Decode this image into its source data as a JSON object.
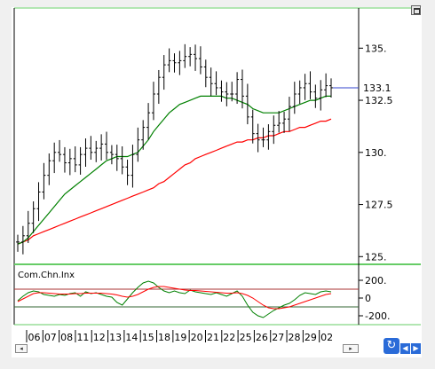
{
  "chart_data": [
    {
      "type": "line",
      "subtype": "ohlc-bars",
      "title": "",
      "xlabel": "",
      "ylabel": "",
      "ylim": [
        124.8,
        136.8
      ],
      "y_ticks": [
        "135.",
        "132.5",
        "130.",
        "127.5",
        "125."
      ],
      "y_tick_values": [
        135,
        132.5,
        130,
        127.5,
        125
      ],
      "last_value_label": "133.1",
      "last_value": 133.1,
      "x_tick_labels": [
        "06",
        "07",
        "08",
        "11",
        "12",
        "13",
        "14",
        "15",
        "18",
        "19",
        "20",
        "21",
        "22",
        "25",
        "26",
        "27",
        "28",
        "29",
        "02"
      ],
      "series": [
        {
          "values": [
            125.7,
            126.0,
            126.6,
            127.3,
            128.1,
            128.9,
            129.6,
            130.0,
            129.9,
            129.5,
            129.7,
            129.4,
            129.9,
            130.2,
            130.0,
            130.2,
            130.4,
            130.0,
            129.9,
            129.7,
            129.3,
            128.9,
            129.9,
            130.6,
            131.2,
            131.9,
            132.8,
            133.6,
            134.2,
            134.4,
            134.3,
            134.4,
            134.6,
            134.7,
            134.5,
            134.1,
            133.6,
            133.3,
            133.1,
            132.9,
            132.8,
            132.8,
            133.5,
            132.7,
            131.7,
            130.9,
            130.6,
            130.6,
            131.0,
            131.3,
            131.4,
            131.6,
            132.2,
            132.8,
            133.1,
            133.3,
            132.9,
            132.6,
            133.0,
            133.2,
            133.1
          ]
        },
        {
          "color": "#008000",
          "values": [
            125.6,
            125.7,
            125.9,
            126.2,
            126.5,
            126.8,
            127.1,
            127.4,
            127.7,
            128.0,
            128.2,
            128.4,
            128.6,
            128.8,
            129.0,
            129.2,
            129.4,
            129.6,
            129.7,
            129.8,
            129.8,
            129.8,
            129.9,
            130.0,
            130.3,
            130.6,
            131.0,
            131.3,
            131.6,
            131.9,
            132.1,
            132.3,
            132.4,
            132.5,
            132.6,
            132.7,
            132.7,
            132.7,
            132.7,
            132.7,
            132.6,
            132.6,
            132.5,
            132.4,
            132.3,
            132.1,
            132.0,
            131.9,
            131.9,
            131.9,
            131.9,
            132.0,
            132.1,
            132.2,
            132.3,
            132.4,
            132.5,
            132.5,
            132.6,
            132.7,
            132.7
          ]
        },
        {
          "color": "#ff0000",
          "values": [
            125.6,
            125.7,
            125.8,
            126.0,
            126.1,
            126.2,
            126.3,
            126.4,
            126.5,
            126.6,
            126.7,
            126.8,
            126.9,
            127.0,
            127.1,
            127.2,
            127.3,
            127.4,
            127.5,
            127.6,
            127.7,
            127.8,
            127.9,
            128.0,
            128.1,
            128.2,
            128.3,
            128.5,
            128.6,
            128.8,
            129.0,
            129.2,
            129.4,
            129.5,
            129.7,
            129.8,
            129.9,
            130.0,
            130.1,
            130.2,
            130.3,
            130.4,
            130.5,
            130.5,
            130.6,
            130.6,
            130.7,
            130.7,
            130.8,
            130.8,
            130.9,
            131.0,
            131.0,
            131.1,
            131.2,
            131.2,
            131.3,
            131.4,
            131.5,
            131.5,
            131.6
          ]
        }
      ]
    },
    {
      "type": "line",
      "title": "Com.Chn.Inx",
      "ylim": [
        -260,
        300
      ],
      "y_ticks": [
        "200.",
        "0",
        "-200."
      ],
      "y_tick_values": [
        200,
        0,
        -200
      ],
      "reference_lines": [
        100,
        -100
      ],
      "series": [
        {
          "color": "#008000",
          "values": [
            -30,
            20,
            60,
            80,
            70,
            40,
            30,
            20,
            40,
            30,
            50,
            60,
            20,
            70,
            50,
            60,
            40,
            20,
            10,
            -50,
            -80,
            -10,
            60,
            120,
            170,
            190,
            170,
            120,
            80,
            60,
            80,
            60,
            50,
            90,
            70,
            60,
            50,
            40,
            60,
            40,
            20,
            50,
            80,
            20,
            -80,
            -160,
            -200,
            -220,
            -180,
            -140,
            -110,
            -80,
            -60,
            -20,
            30,
            60,
            50,
            40,
            70,
            80,
            70
          ]
        },
        {
          "color": "#ff0000",
          "values": [
            -40,
            -10,
            20,
            50,
            60,
            60,
            55,
            50,
            45,
            45,
            45,
            50,
            50,
            55,
            55,
            55,
            55,
            50,
            45,
            35,
            20,
            10,
            20,
            40,
            70,
            100,
            120,
            130,
            130,
            120,
            110,
            100,
            90,
            85,
            85,
            80,
            75,
            70,
            65,
            60,
            55,
            55,
            60,
            50,
            30,
            0,
            -40,
            -80,
            -110,
            -120,
            -120,
            -110,
            -100,
            -80,
            -60,
            -40,
            -20,
            0,
            20,
            40,
            50
          ]
        }
      ]
    }
  ]
}
